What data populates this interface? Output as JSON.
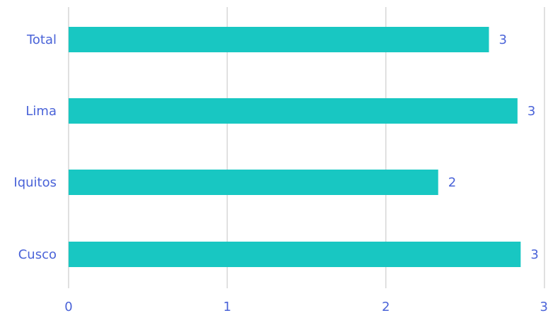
{
  "chart_data": {
    "type": "bar",
    "orientation": "horizontal",
    "categories": [
      "Total",
      "Lima",
      "Iquitos",
      "Cusco"
    ],
    "values": [
      2.65,
      2.83,
      2.33,
      2.85
    ],
    "data_labels": [
      "3",
      "3",
      "2",
      "3"
    ],
    "x_ticks": [
      "0",
      "1",
      "2",
      "3"
    ],
    "xlim": [
      0,
      3
    ],
    "title": "",
    "xlabel": "",
    "ylabel": "",
    "grid": "vertical",
    "legend": "none",
    "colors": {
      "bar": "#18c7c2",
      "text": "#4a63d8",
      "grid": "#d6d6d6"
    }
  }
}
